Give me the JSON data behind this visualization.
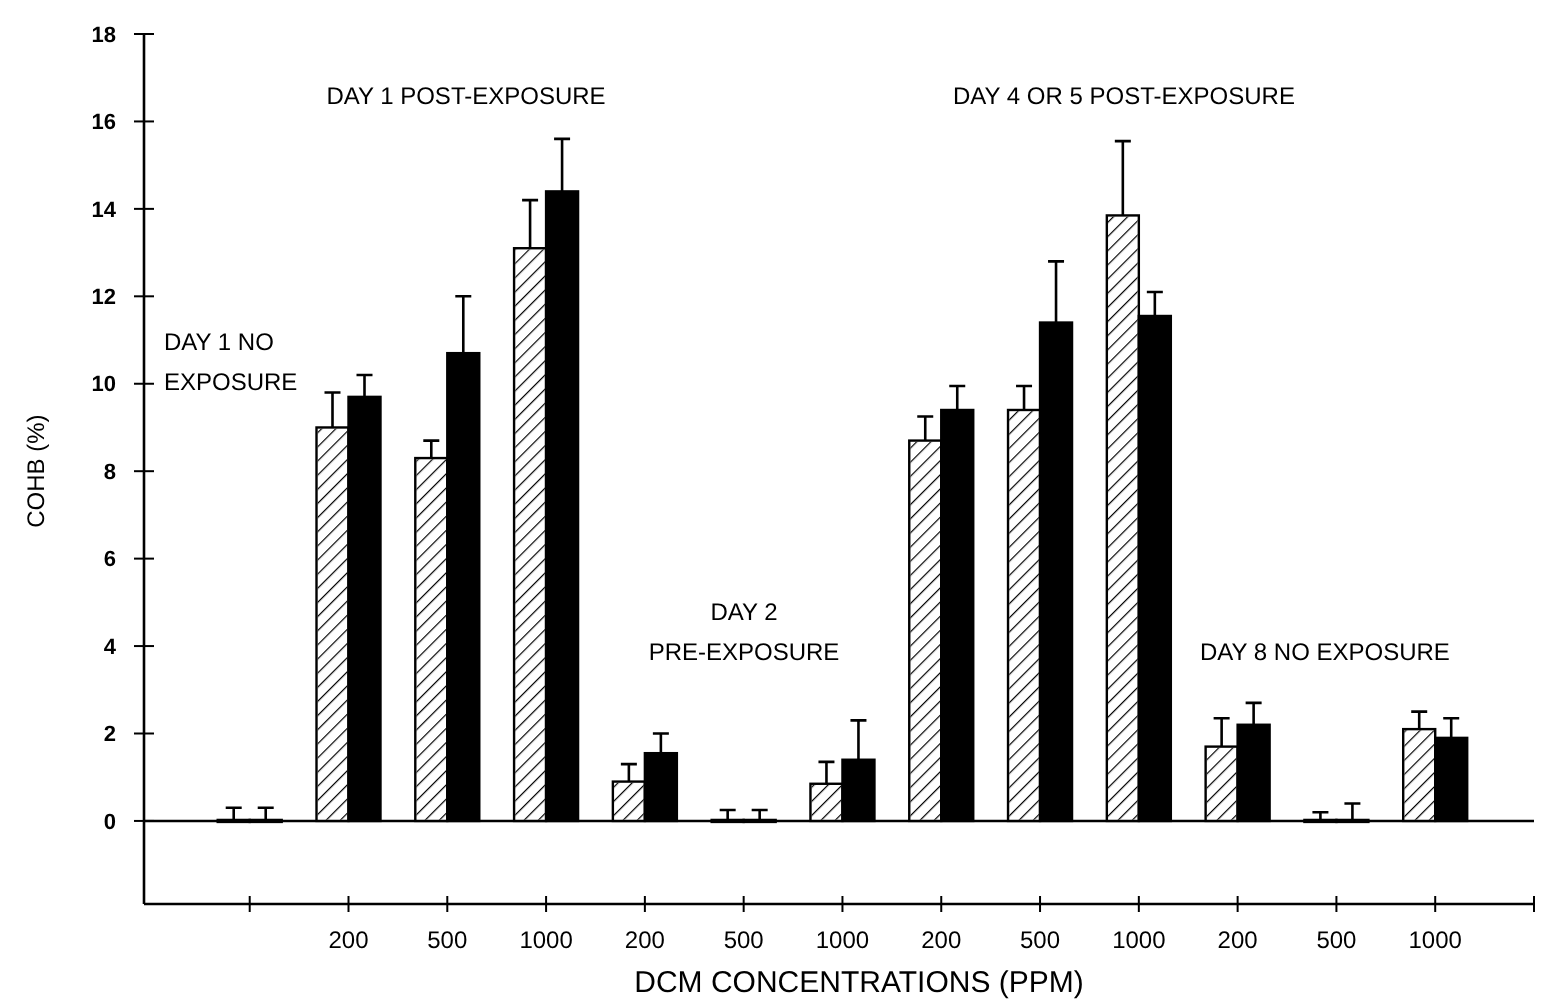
{
  "chart_data": {
    "type": "bar",
    "xlabel": "DCM CONCENTRATIONS (PPM)",
    "ylabel": "COHB (%)",
    "categories": [
      null,
      "200",
      "500",
      "1000",
      "200",
      "500",
      "1000",
      "200",
      "500",
      "1000",
      "200",
      "500",
      "1000"
    ],
    "series": [
      {
        "color": "#ffffff",
        "values": [
          0,
          9.0,
          8.3,
          13.1,
          0.9,
          0,
          0.85,
          8.7,
          9.4,
          13.85,
          1.7,
          0,
          2.1
        ],
        "errors": [
          [
            0,
            0.3
          ],
          [
            9.0,
            9.8
          ],
          [
            8.3,
            8.7
          ],
          [
            13.1,
            14.2
          ],
          [
            0.9,
            1.3
          ],
          [
            0,
            0.25
          ],
          [
            0.85,
            1.35
          ],
          [
            8.7,
            9.25
          ],
          [
            9.4,
            9.95
          ],
          [
            13.85,
            15.55
          ],
          [
            1.7,
            2.35
          ],
          [
            0,
            0.2
          ],
          [
            2.1,
            2.5
          ]
        ]
      },
      {
        "color": "#000000",
        "values": [
          0,
          9.7,
          10.7,
          14.4,
          1.55,
          0,
          1.4,
          9.4,
          11.4,
          11.55,
          2.2,
          0,
          1.9
        ],
        "errors": [
          [
            0,
            0.3
          ],
          [
            9.7,
            10.2
          ],
          [
            10.7,
            12.0
          ],
          [
            14.4,
            15.6
          ],
          [
            1.55,
            2.0
          ],
          [
            0,
            0.25
          ],
          [
            1.4,
            2.3
          ],
          [
            9.4,
            9.95
          ],
          [
            11.4,
            12.8
          ],
          [
            11.55,
            12.1
          ],
          [
            2.2,
            2.7
          ],
          [
            0,
            0.4
          ],
          [
            1.9,
            2.35
          ]
        ]
      }
    ],
    "ylim": [
      -1.9,
      18
    ],
    "ref_lines": [
      {
        "axis": "y",
        "value": 0
      }
    ],
    "yticks": [
      0,
      2,
      4,
      6,
      8,
      10,
      12,
      14,
      16,
      18
    ],
    "grid": false,
    "annotations": [
      "DAY 1 NO\nEXPOSURE",
      "DAY 1 POST-EXPOSURE",
      "DAY 2\nPRE-EXPOSURE",
      "DAY 4 OR 5 POST-EXPOSURE",
      "DAY 8 NO EXPOSURE"
    ]
  }
}
